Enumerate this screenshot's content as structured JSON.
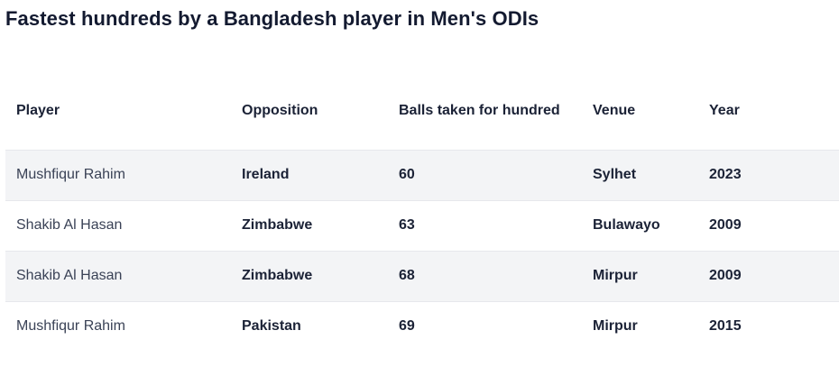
{
  "title": "Fastest hundreds by a Bangladesh player in Men's ODIs",
  "table": {
    "headers": {
      "player": "Player",
      "opposition": "Opposition",
      "balls": "Balls taken for hundred",
      "venue": "Venue",
      "year": "Year"
    },
    "rows": [
      {
        "player": "Mushfiqur Rahim",
        "opposition": "Ireland",
        "balls": "60",
        "venue": "Sylhet",
        "year": "2023"
      },
      {
        "player": "Shakib Al Hasan",
        "opposition": "Zimbabwe",
        "balls": "63",
        "venue": "Bulawayo",
        "year": "2009"
      },
      {
        "player": "Shakib Al Hasan",
        "opposition": "Zimbabwe",
        "balls": "68",
        "venue": "Mirpur",
        "year": "2009"
      },
      {
        "player": "Mushfiqur Rahim",
        "opposition": "Pakistan",
        "balls": "69",
        "venue": "Mirpur",
        "year": "2015"
      }
    ]
  }
}
